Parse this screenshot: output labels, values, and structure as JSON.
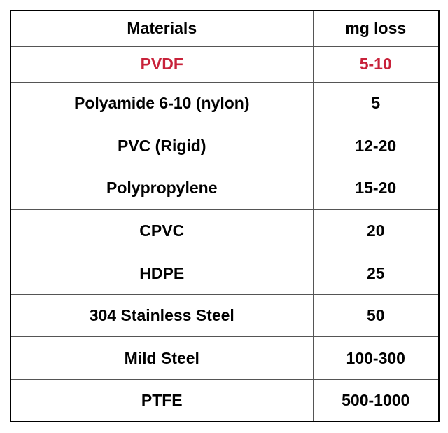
{
  "table": {
    "header": [
      "Materials",
      "mg loss"
    ],
    "rows": [
      [
        "PVDF",
        "5-10"
      ],
      [
        "Polyamide 6-10 (nylon)",
        "5"
      ],
      [
        "PVC (Rigid)",
        "12-20"
      ],
      [
        "Polypropylene",
        "15-20"
      ],
      [
        "CPVC",
        "20"
      ],
      [
        "HDPE",
        "25"
      ],
      [
        "304 Stainless Steel",
        "50"
      ],
      [
        "Mild Steel",
        "100-300"
      ],
      [
        "PTFE",
        "500-1000"
      ]
    ]
  }
}
